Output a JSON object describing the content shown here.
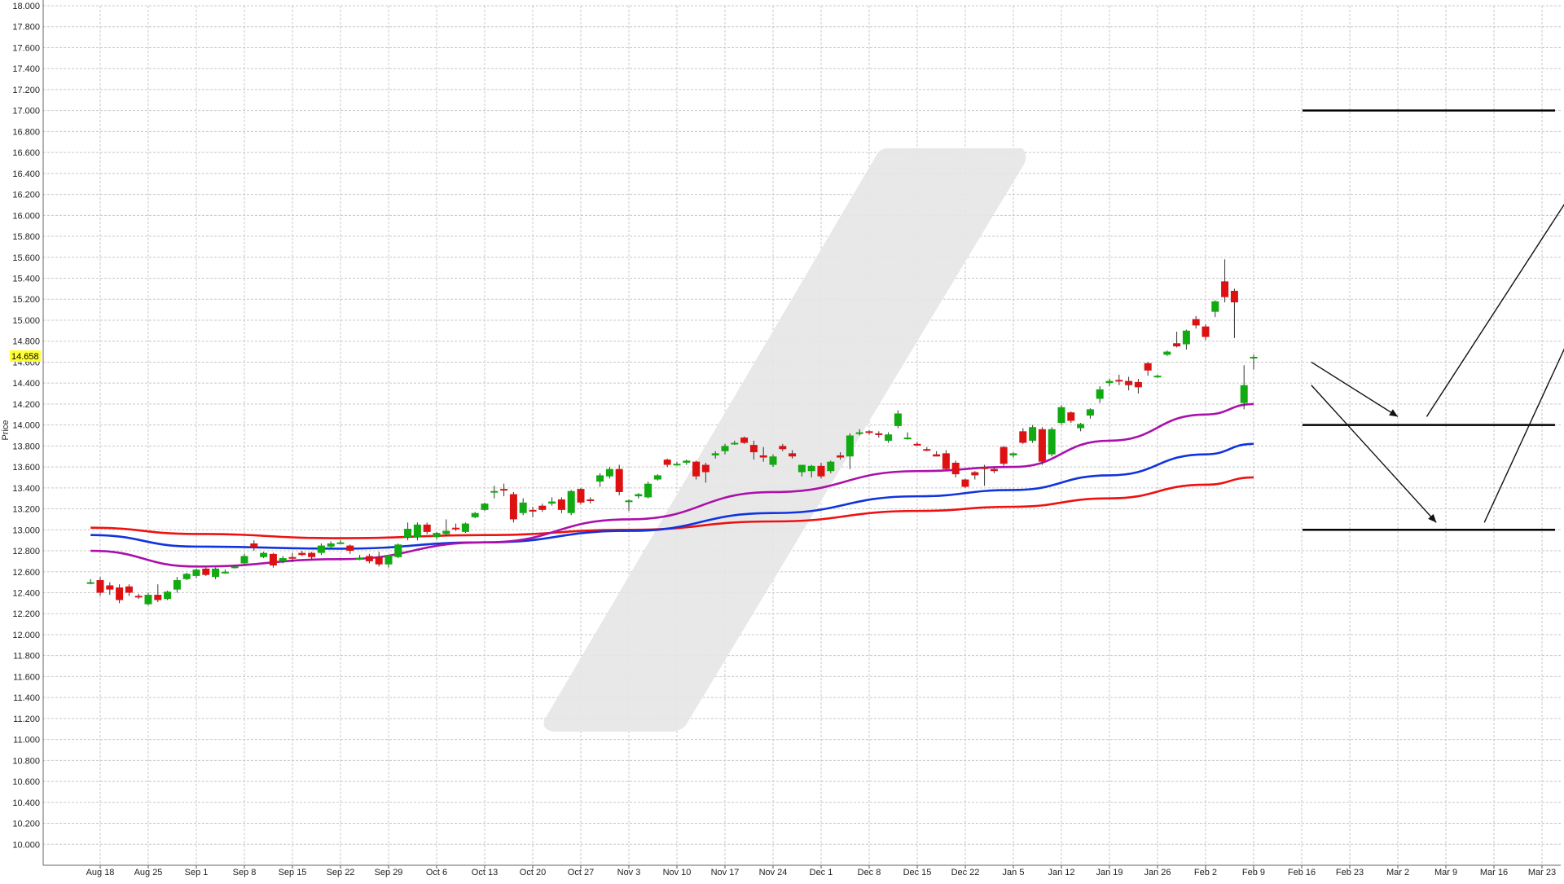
{
  "chart_data": {
    "type": "candlestick",
    "ylabel": "Price",
    "ylim": [
      9.8,
      18.0
    ],
    "y_ticks": [
      "10.000",
      "10.200",
      "10.400",
      "10.600",
      "10.800",
      "11.000",
      "11.200",
      "11.400",
      "11.600",
      "11.800",
      "12.000",
      "12.200",
      "12.400",
      "12.600",
      "12.800",
      "13.000",
      "13.200",
      "13.400",
      "13.600",
      "13.800",
      "14.000",
      "14.200",
      "14.400",
      "14.600",
      "14.800",
      "15.000",
      "15.200",
      "15.400",
      "15.600",
      "15.800",
      "16.000",
      "16.200",
      "16.400",
      "16.600",
      "16.800",
      "17.000",
      "17.200",
      "17.400",
      "17.600",
      "17.800",
      "18.000"
    ],
    "x_ticks": [
      "Aug 18",
      "Aug 25",
      "Sep 1",
      "Sep 8",
      "Sep 15",
      "Sep 22",
      "Sep 29",
      "Oct 6",
      "Oct 13",
      "Oct 20",
      "Oct 27",
      "Nov 3",
      "Nov 10",
      "Nov 17",
      "Nov 24",
      "Dec 1",
      "Dec 8",
      "Dec 15",
      "Dec 22",
      "Jan 5",
      "Jan 12",
      "Jan 19",
      "Jan 26",
      "Feb 2",
      "Feb 9",
      "Feb 16",
      "Feb 23",
      "Mar 2",
      "Mar 9",
      "Mar 16",
      "Mar 23"
    ],
    "x_tick_day_index": [
      0,
      5,
      10,
      15,
      20,
      25,
      30,
      35,
      40,
      45,
      50,
      55,
      60,
      65,
      70,
      75,
      80,
      85,
      90,
      95,
      100,
      105,
      110,
      115,
      120,
      125,
      130,
      135,
      140,
      145,
      150
    ],
    "current_price": "14.658",
    "colors": {
      "up": "#11aa11",
      "down": "#dd1111",
      "ma_red": "#ee1111",
      "ma_blue": "#1133dd",
      "ma_purple": "#aa11aa",
      "grid": "#c8c8c8",
      "price_tag": "#ffff33",
      "watermark": "#e6e6e6"
    },
    "candles": [
      {
        "i": -1,
        "o": 12.5,
        "h": 12.53,
        "l": 12.48,
        "c": 12.5
      },
      {
        "i": 0,
        "o": 12.52,
        "h": 12.55,
        "l": 12.37,
        "c": 12.4
      },
      {
        "i": 1,
        "o": 12.47,
        "h": 12.5,
        "l": 12.38,
        "c": 12.43
      },
      {
        "i": 2,
        "o": 12.45,
        "h": 12.48,
        "l": 12.3,
        "c": 12.33
      },
      {
        "i": 3,
        "o": 12.46,
        "h": 12.48,
        "l": 12.37,
        "c": 12.4
      },
      {
        "i": 4,
        "o": 12.37,
        "h": 12.39,
        "l": 12.34,
        "c": 12.36
      },
      {
        "i": 5,
        "o": 12.29,
        "h": 12.4,
        "l": 12.28,
        "c": 12.38
      },
      {
        "i": 6,
        "o": 12.38,
        "h": 12.48,
        "l": 12.31,
        "c": 12.33
      },
      {
        "i": 7,
        "o": 12.34,
        "h": 12.42,
        "l": 12.33,
        "c": 12.41
      },
      {
        "i": 8,
        "o": 12.43,
        "h": 12.55,
        "l": 12.4,
        "c": 12.52
      },
      {
        "i": 9,
        "o": 12.53,
        "h": 12.59,
        "l": 12.52,
        "c": 12.58
      },
      {
        "i": 10,
        "o": 12.56,
        "h": 12.63,
        "l": 12.54,
        "c": 12.62
      },
      {
        "i": 11,
        "o": 12.63,
        "h": 12.64,
        "l": 12.56,
        "c": 12.57
      },
      {
        "i": 12,
        "o": 12.55,
        "h": 12.64,
        "l": 12.53,
        "c": 12.63
      },
      {
        "i": 13,
        "o": 12.6,
        "h": 12.62,
        "l": 12.58,
        "c": 12.6
      },
      {
        "i": 14,
        "o": 12.64,
        "h": 12.66,
        "l": 12.63,
        "c": 12.65
      },
      {
        "i": 15,
        "o": 12.68,
        "h": 12.77,
        "l": 12.67,
        "c": 12.75
      },
      {
        "i": 16,
        "o": 12.87,
        "h": 12.9,
        "l": 12.8,
        "c": 12.83
      },
      {
        "i": 17,
        "o": 12.74,
        "h": 12.79,
        "l": 12.73,
        "c": 12.78
      },
      {
        "i": 18,
        "o": 12.77,
        "h": 12.78,
        "l": 12.64,
        "c": 12.66
      },
      {
        "i": 19,
        "o": 12.7,
        "h": 12.75,
        "l": 12.68,
        "c": 12.73
      },
      {
        "i": 20,
        "o": 12.74,
        "h": 12.78,
        "l": 12.69,
        "c": 12.73
      },
      {
        "i": 21,
        "o": 12.78,
        "h": 12.8,
        "l": 12.75,
        "c": 12.76
      },
      {
        "i": 22,
        "o": 12.78,
        "h": 12.79,
        "l": 12.72,
        "c": 12.74
      },
      {
        "i": 23,
        "o": 12.78,
        "h": 12.87,
        "l": 12.76,
        "c": 12.85
      },
      {
        "i": 24,
        "o": 12.84,
        "h": 12.89,
        "l": 12.82,
        "c": 12.87
      },
      {
        "i": 25,
        "o": 12.88,
        "h": 12.9,
        "l": 12.87,
        "c": 12.88
      },
      {
        "i": 26,
        "o": 12.85,
        "h": 12.86,
        "l": 12.77,
        "c": 12.8
      },
      {
        "i": 27,
        "o": 12.73,
        "h": 12.76,
        "l": 12.71,
        "c": 12.73
      },
      {
        "i": 28,
        "o": 12.75,
        "h": 12.77,
        "l": 12.68,
        "c": 12.7
      },
      {
        "i": 29,
        "o": 12.74,
        "h": 12.79,
        "l": 12.65,
        "c": 12.67
      },
      {
        "i": 30,
        "o": 12.67,
        "h": 12.72,
        "l": 12.64,
        "c": 12.76
      },
      {
        "i": 31,
        "o": 12.74,
        "h": 12.87,
        "l": 12.73,
        "c": 12.86
      },
      {
        "i": 32,
        "o": 12.93,
        "h": 13.07,
        "l": 12.9,
        "c": 13.01
      },
      {
        "i": 33,
        "o": 12.93,
        "h": 13.07,
        "l": 12.9,
        "c": 13.05
      },
      {
        "i": 34,
        "o": 13.05,
        "h": 13.07,
        "l": 12.96,
        "c": 12.98
      },
      {
        "i": 35,
        "o": 12.93,
        "h": 12.98,
        "l": 12.91,
        "c": 12.97
      },
      {
        "i": 36,
        "o": 12.96,
        "h": 13.1,
        "l": 12.94,
        "c": 12.99
      },
      {
        "i": 37,
        "o": 13.02,
        "h": 13.06,
        "l": 12.99,
        "c": 13.01
      },
      {
        "i": 38,
        "o": 12.98,
        "h": 13.07,
        "l": 12.97,
        "c": 13.06
      },
      {
        "i": 39,
        "o": 13.12,
        "h": 13.17,
        "l": 13.11,
        "c": 13.16
      },
      {
        "i": 40,
        "o": 13.19,
        "h": 13.26,
        "l": 13.18,
        "c": 13.25
      },
      {
        "i": 41,
        "o": 13.37,
        "h": 13.42,
        "l": 13.3,
        "c": 13.37
      },
      {
        "i": 42,
        "o": 13.39,
        "h": 13.44,
        "l": 13.32,
        "c": 13.38
      },
      {
        "i": 43,
        "o": 13.34,
        "h": 13.36,
        "l": 13.07,
        "c": 13.1
      },
      {
        "i": 44,
        "o": 13.16,
        "h": 13.3,
        "l": 13.14,
        "c": 13.26
      },
      {
        "i": 45,
        "o": 13.19,
        "h": 13.22,
        "l": 13.12,
        "c": 13.18
      },
      {
        "i": 46,
        "o": 13.23,
        "h": 13.25,
        "l": 13.17,
        "c": 13.19
      },
      {
        "i": 47,
        "o": 13.25,
        "h": 13.31,
        "l": 13.23,
        "c": 13.27
      },
      {
        "i": 48,
        "o": 13.29,
        "h": 13.31,
        "l": 13.16,
        "c": 13.19
      },
      {
        "i": 49,
        "o": 13.16,
        "h": 13.38,
        "l": 13.14,
        "c": 13.37
      },
      {
        "i": 50,
        "o": 13.39,
        "h": 13.4,
        "l": 13.24,
        "c": 13.26
      },
      {
        "i": 51,
        "o": 13.29,
        "h": 13.31,
        "l": 13.25,
        "c": 13.28
      },
      {
        "i": 52,
        "o": 13.46,
        "h": 13.54,
        "l": 13.41,
        "c": 13.52
      },
      {
        "i": 53,
        "o": 13.51,
        "h": 13.6,
        "l": 13.49,
        "c": 13.58
      },
      {
        "i": 54,
        "o": 13.58,
        "h": 13.62,
        "l": 13.33,
        "c": 13.36
      },
      {
        "i": 55,
        "o": 13.27,
        "h": 13.29,
        "l": 13.18,
        "c": 13.28
      },
      {
        "i": 56,
        "o": 13.32,
        "h": 13.35,
        "l": 13.3,
        "c": 13.34
      },
      {
        "i": 57,
        "o": 13.31,
        "h": 13.46,
        "l": 13.3,
        "c": 13.44
      },
      {
        "i": 58,
        "o": 13.48,
        "h": 13.53,
        "l": 13.47,
        "c": 13.52
      },
      {
        "i": 59,
        "o": 13.67,
        "h": 13.68,
        "l": 13.6,
        "c": 13.62
      },
      {
        "i": 60,
        "o": 13.62,
        "h": 13.65,
        "l": 13.61,
        "c": 13.63
      },
      {
        "i": 61,
        "o": 13.64,
        "h": 13.67,
        "l": 13.62,
        "c": 13.66
      },
      {
        "i": 62,
        "o": 13.65,
        "h": 13.66,
        "l": 13.48,
        "c": 13.51
      },
      {
        "i": 63,
        "o": 13.62,
        "h": 13.64,
        "l": 13.45,
        "c": 13.55
      },
      {
        "i": 64,
        "o": 13.71,
        "h": 13.75,
        "l": 13.68,
        "c": 13.73
      },
      {
        "i": 65,
        "o": 13.75,
        "h": 13.82,
        "l": 13.72,
        "c": 13.8
      },
      {
        "i": 66,
        "o": 13.82,
        "h": 13.85,
        "l": 13.81,
        "c": 13.83
      },
      {
        "i": 67,
        "o": 13.88,
        "h": 13.89,
        "l": 13.82,
        "c": 13.83
      },
      {
        "i": 68,
        "o": 13.81,
        "h": 13.85,
        "l": 13.67,
        "c": 13.74
      },
      {
        "i": 69,
        "o": 13.71,
        "h": 13.79,
        "l": 13.65,
        "c": 13.69
      },
      {
        "i": 70,
        "o": 13.62,
        "h": 13.72,
        "l": 13.6,
        "c": 13.7
      },
      {
        "i": 71,
        "o": 13.8,
        "h": 13.82,
        "l": 13.75,
        "c": 13.77
      },
      {
        "i": 72,
        "o": 13.73,
        "h": 13.76,
        "l": 13.68,
        "c": 13.7
      },
      {
        "i": 73,
        "o": 13.55,
        "h": 13.6,
        "l": 13.51,
        "c": 13.62
      },
      {
        "i": 74,
        "o": 13.56,
        "h": 13.62,
        "l": 13.5,
        "c": 13.61
      },
      {
        "i": 75,
        "o": 13.61,
        "h": 13.64,
        "l": 13.49,
        "c": 13.51
      },
      {
        "i": 76,
        "o": 13.56,
        "h": 13.66,
        "l": 13.54,
        "c": 13.65
      },
      {
        "i": 77,
        "o": 13.71,
        "h": 13.74,
        "l": 13.67,
        "c": 13.69
      },
      {
        "i": 78,
        "o": 13.7,
        "h": 13.92,
        "l": 13.58,
        "c": 13.9
      },
      {
        "i": 79,
        "o": 13.93,
        "h": 13.96,
        "l": 13.9,
        "c": 13.93
      },
      {
        "i": 80,
        "o": 13.94,
        "h": 13.95,
        "l": 13.91,
        "c": 13.93
      },
      {
        "i": 81,
        "o": 13.92,
        "h": 13.94,
        "l": 13.88,
        "c": 13.91
      },
      {
        "i": 82,
        "o": 13.85,
        "h": 13.93,
        "l": 13.83,
        "c": 13.91
      },
      {
        "i": 83,
        "o": 13.99,
        "h": 14.14,
        "l": 13.97,
        "c": 14.11
      },
      {
        "i": 84,
        "o": 13.88,
        "h": 13.93,
        "l": 13.86,
        "c": 13.88
      },
      {
        "i": 85,
        "o": 13.82,
        "h": 13.84,
        "l": 13.8,
        "c": 13.81
      },
      {
        "i": 86,
        "o": 13.77,
        "h": 13.79,
        "l": 13.75,
        "c": 13.76
      },
      {
        "i": 87,
        "o": 13.72,
        "h": 13.75,
        "l": 13.7,
        "c": 13.7
      },
      {
        "i": 88,
        "o": 13.73,
        "h": 13.76,
        "l": 13.57,
        "c": 13.58
      },
      {
        "i": 89,
        "o": 13.64,
        "h": 13.66,
        "l": 13.5,
        "c": 13.53
      },
      {
        "i": 90,
        "o": 13.48,
        "h": 13.49,
        "l": 13.4,
        "c": 13.41
      },
      {
        "i": 91,
        "o": 13.55,
        "h": 13.56,
        "l": 13.48,
        "c": 13.52
      },
      {
        "i": 92,
        "o": 13.6,
        "h": 13.62,
        "l": 13.42,
        "c": 13.58
      },
      {
        "i": 93,
        "o": 13.58,
        "h": 13.6,
        "l": 13.54,
        "c": 13.56
      },
      {
        "i": 94,
        "o": 13.79,
        "h": 13.8,
        "l": 13.61,
        "c": 13.63
      },
      {
        "i": 95,
        "o": 13.71,
        "h": 13.74,
        "l": 13.69,
        "c": 13.73
      },
      {
        "i": 96,
        "o": 13.94,
        "h": 13.97,
        "l": 13.82,
        "c": 13.83
      },
      {
        "i": 97,
        "o": 13.85,
        "h": 14.0,
        "l": 13.83,
        "c": 13.98
      },
      {
        "i": 98,
        "o": 13.96,
        "h": 13.98,
        "l": 13.62,
        "c": 13.65
      },
      {
        "i": 99,
        "o": 13.72,
        "h": 13.98,
        "l": 13.7,
        "c": 13.96
      },
      {
        "i": 100,
        "o": 14.02,
        "h": 14.19,
        "l": 14.0,
        "c": 14.17
      },
      {
        "i": 101,
        "o": 14.12,
        "h": 14.13,
        "l": 14.02,
        "c": 14.04
      },
      {
        "i": 102,
        "o": 13.97,
        "h": 14.02,
        "l": 13.94,
        "c": 14.01
      },
      {
        "i": 103,
        "o": 14.09,
        "h": 14.16,
        "l": 14.06,
        "c": 14.15
      },
      {
        "i": 104,
        "o": 14.25,
        "h": 14.37,
        "l": 14.21,
        "c": 14.34
      },
      {
        "i": 105,
        "o": 14.4,
        "h": 14.44,
        "l": 14.37,
        "c": 14.42
      },
      {
        "i": 106,
        "o": 14.43,
        "h": 14.48,
        "l": 14.38,
        "c": 14.42
      },
      {
        "i": 107,
        "o": 14.42,
        "h": 14.46,
        "l": 14.33,
        "c": 14.38
      },
      {
        "i": 108,
        "o": 14.41,
        "h": 14.44,
        "l": 14.3,
        "c": 14.36
      },
      {
        "i": 109,
        "o": 14.59,
        "h": 14.6,
        "l": 14.47,
        "c": 14.52
      },
      {
        "i": 110,
        "o": 14.46,
        "h": 14.48,
        "l": 14.45,
        "c": 14.47
      },
      {
        "i": 111,
        "o": 14.67,
        "h": 14.71,
        "l": 14.66,
        "c": 14.7
      },
      {
        "i": 112,
        "o": 14.78,
        "h": 14.89,
        "l": 14.74,
        "c": 14.75
      },
      {
        "i": 113,
        "o": 14.77,
        "h": 14.91,
        "l": 14.72,
        "c": 14.9
      },
      {
        "i": 114,
        "o": 15.01,
        "h": 15.04,
        "l": 14.92,
        "c": 14.95
      },
      {
        "i": 115,
        "o": 14.94,
        "h": 14.96,
        "l": 14.81,
        "c": 14.84
      },
      {
        "i": 116,
        "o": 15.08,
        "h": 15.19,
        "l": 15.03,
        "c": 15.18
      },
      {
        "i": 117,
        "o": 15.37,
        "h": 15.58,
        "l": 15.17,
        "c": 15.22
      },
      {
        "i": 118,
        "o": 15.28,
        "h": 15.3,
        "l": 14.83,
        "c": 15.17
      },
      {
        "i": 119,
        "o": 14.21,
        "h": 14.57,
        "l": 14.15,
        "c": 14.38
      },
      {
        "i": 120,
        "o": 14.65,
        "h": 14.67,
        "l": 14.53,
        "c": 14.65
      }
    ],
    "ma_red": [
      [
        -1,
        13.02
      ],
      [
        10,
        12.96
      ],
      [
        25,
        12.92
      ],
      [
        40,
        12.95
      ],
      [
        55,
        13.0
      ],
      [
        70,
        13.08
      ],
      [
        85,
        13.18
      ],
      [
        95,
        13.22
      ],
      [
        105,
        13.3
      ],
      [
        115,
        13.43
      ],
      [
        120,
        13.5
      ]
    ],
    "ma_blue": [
      [
        -1,
        12.95
      ],
      [
        10,
        12.84
      ],
      [
        25,
        12.82
      ],
      [
        40,
        12.88
      ],
      [
        55,
        12.99
      ],
      [
        70,
        13.16
      ],
      [
        85,
        13.32
      ],
      [
        95,
        13.38
      ],
      [
        105,
        13.52
      ],
      [
        115,
        13.72
      ],
      [
        120,
        13.82
      ]
    ],
    "ma_purple": [
      [
        -1,
        12.8
      ],
      [
        10,
        12.65
      ],
      [
        25,
        12.72
      ],
      [
        40,
        12.88
      ],
      [
        55,
        13.1
      ],
      [
        70,
        13.36
      ],
      [
        85,
        13.56
      ],
      [
        95,
        13.6
      ],
      [
        105,
        13.85
      ],
      [
        115,
        14.1
      ],
      [
        120,
        14.2
      ]
    ],
    "levels": [
      {
        "y": 17.0
      },
      {
        "y": 14.0
      },
      {
        "y": 13.0
      }
    ],
    "level_range": [
      125,
      150
    ],
    "arrows": [
      {
        "from": [
          126,
          14.6
        ],
        "to": [
          135,
          14.08
        ]
      },
      {
        "from": [
          126,
          14.38
        ],
        "to": [
          139,
          13.07
        ]
      },
      {
        "from": [
          138,
          14.08
        ],
        "to": [
          159,
          17.05
        ]
      },
      {
        "from": [
          144,
          13.07
        ],
        "to": [
          164,
          17.05
        ]
      }
    ]
  }
}
